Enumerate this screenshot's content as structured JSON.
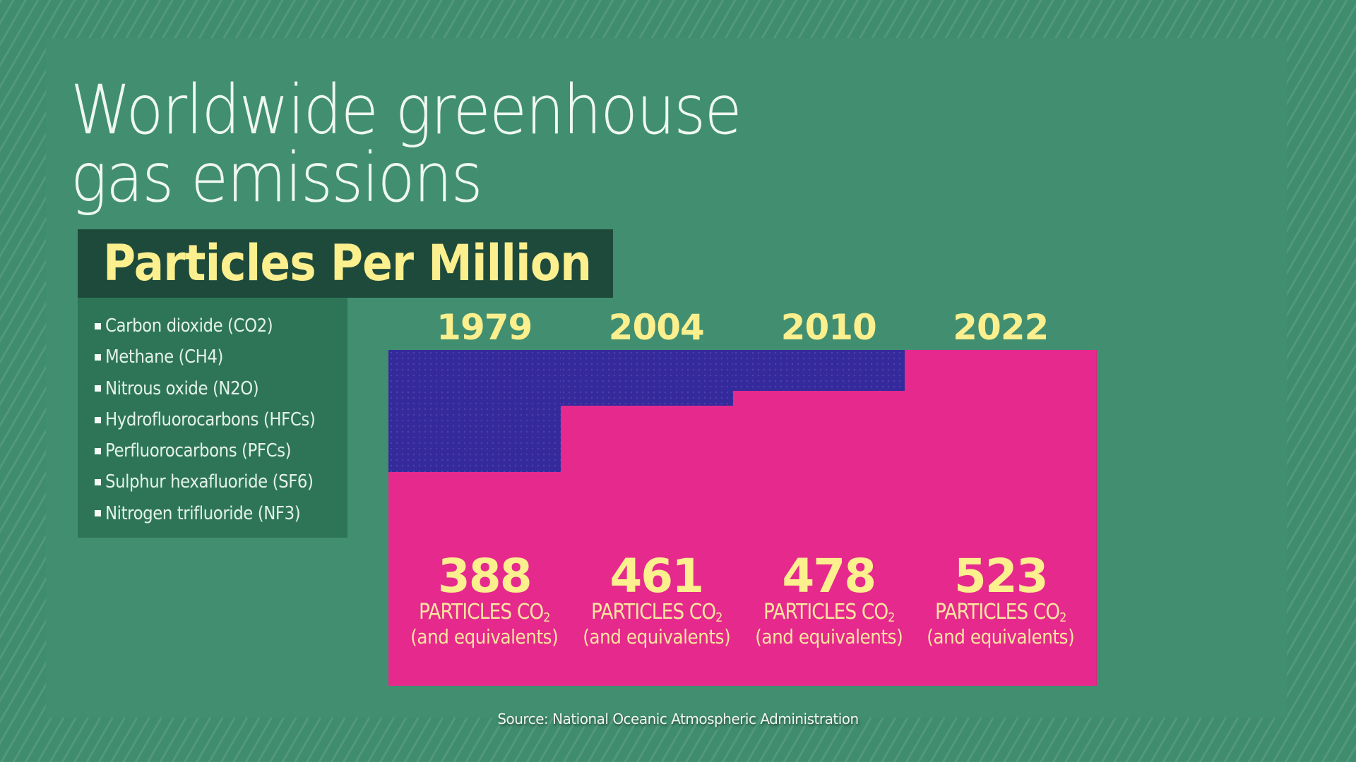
{
  "header": {
    "title_line1": "Worldwide greenhouse",
    "title_line2": "gas emissions",
    "subtitle": "Particles Per Million"
  },
  "legend": {
    "items": [
      {
        "label": "Carbon dioxide (CO2)"
      },
      {
        "label": "Methane (CH4)"
      },
      {
        "label": "Nitrous oxide (N2O)"
      },
      {
        "label": "Hydrofluorocarbons (HFCs)"
      },
      {
        "label": "Perfluorocarbons (PFCs)"
      },
      {
        "label": "Sulphur hexafluoride (SF6)"
      },
      {
        "label": "Nitrogen trifluoride (NF3)"
      }
    ]
  },
  "columns": [
    {
      "year": "1979",
      "value": "388",
      "unit": "PARTICLES CO",
      "unit_sub": "2",
      "note": "(and equivalents)"
    },
    {
      "year": "2004",
      "value": "461",
      "unit": "PARTICLES CO",
      "unit_sub": "2",
      "note": "(and equivalents)"
    },
    {
      "year": "2010",
      "value": "478",
      "unit": "PARTICLES CO",
      "unit_sub": "2",
      "note": "(and equivalents)"
    },
    {
      "year": "2022",
      "value": "523",
      "unit": "PARTICLES CO",
      "unit_sub": "2",
      "note": "(and equivalents)"
    }
  ],
  "footer": {
    "source": "Source: National Oceanic Atmospheric Administration"
  },
  "colors": {
    "background": "#3f8c6e",
    "panel": "#418f70",
    "subtitle_box": "#1e4a3c",
    "legend_box": "#2e7558",
    "bar_fill": "#e5298d",
    "bar_remainder": "#352a9b",
    "accent_text": "#fbef8e"
  },
  "chart_data": {
    "type": "bar",
    "title": "Worldwide greenhouse gas emissions",
    "subtitle": "Particles Per Million",
    "categories": [
      "1979",
      "2004",
      "2010",
      "2022"
    ],
    "values": [
      388,
      461,
      478,
      523
    ],
    "xlabel": "",
    "ylabel": "PARTICLES CO2 (and equivalents)",
    "ylim": [
      0,
      523
    ],
    "grid": false,
    "legend": [
      "Carbon dioxide (CO2)",
      "Methane (CH4)",
      "Nitrous oxide (N2O)",
      "Hydrofluorocarbons (HFCs)",
      "Perfluorocarbons (PFCs)",
      "Sulphur hexafluoride (SF6)",
      "Nitrogen trifluoride (NF3)"
    ],
    "legend_position": "left",
    "annotations": [
      "Source: National Oceanic Atmospheric Administration"
    ]
  }
}
